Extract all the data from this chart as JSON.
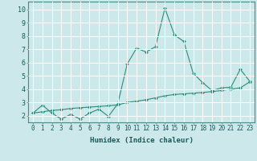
{
  "title": "",
  "xlabel": "Humidex (Indice chaleur)",
  "background_color": "#cce8ea",
  "grid_color": "#ffffff",
  "line_color": "#2e8b7a",
  "xlim": [
    -0.5,
    23.5
  ],
  "ylim": [
    1.5,
    10.6
  ],
  "xticks": [
    0,
    1,
    2,
    3,
    4,
    5,
    6,
    7,
    8,
    9,
    10,
    11,
    12,
    13,
    14,
    15,
    16,
    17,
    18,
    19,
    20,
    21,
    22,
    23
  ],
  "yticks": [
    2,
    3,
    4,
    5,
    6,
    7,
    8,
    9,
    10
  ],
  "series1_x": [
    0,
    1,
    2,
    3,
    4,
    5,
    6,
    7,
    8,
    9,
    10,
    11,
    12,
    13,
    14,
    15,
    16,
    17,
    18,
    19,
    20,
    21,
    22,
    23
  ],
  "series1_y": [
    2.2,
    2.8,
    2.2,
    1.75,
    2.1,
    1.75,
    2.2,
    2.5,
    1.95,
    2.9,
    5.9,
    7.1,
    6.8,
    7.2,
    10.1,
    8.1,
    7.6,
    5.2,
    4.5,
    3.9,
    4.1,
    4.15,
    5.5,
    4.6
  ],
  "series2_x": [
    0,
    1,
    2,
    3,
    4,
    5,
    6,
    7,
    8,
    9,
    10,
    11,
    12,
    13,
    14,
    15,
    16,
    17,
    18,
    19,
    20,
    21,
    22,
    23
  ],
  "series2_y": [
    2.2,
    2.3,
    2.4,
    2.45,
    2.55,
    2.6,
    2.65,
    2.7,
    2.75,
    2.82,
    3.0,
    3.1,
    3.2,
    3.35,
    3.5,
    3.6,
    3.65,
    3.7,
    3.75,
    3.82,
    3.9,
    4.0,
    4.1,
    4.55
  ],
  "tick_fontsize": 5.5,
  "xlabel_fontsize": 6.5,
  "marker_size": 2.0
}
